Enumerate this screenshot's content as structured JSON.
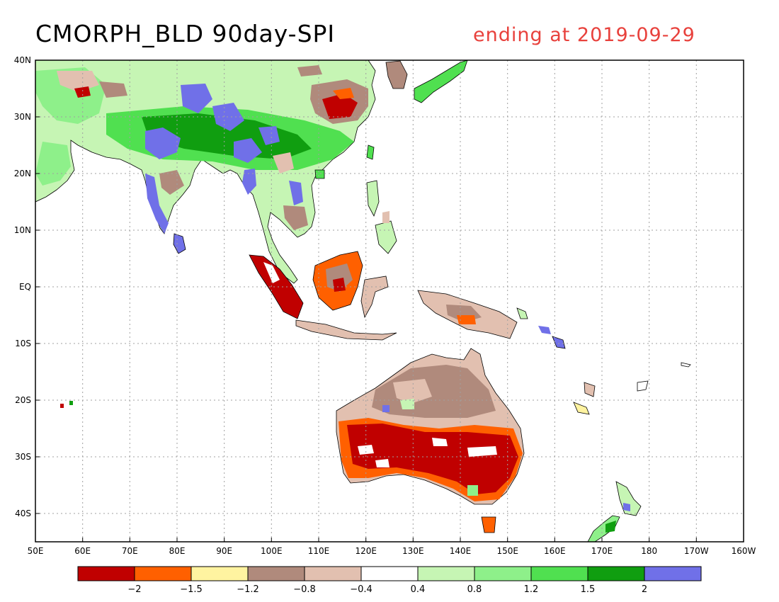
{
  "title": "CMORPH_BLD 90day-SPI",
  "subtitle": "ending at 2019-09-29",
  "map": {
    "lat_labels": [
      "40N",
      "30N",
      "20N",
      "10N",
      "EQ",
      "10S",
      "20S",
      "30S",
      "40S"
    ],
    "lon_labels": [
      "50E",
      "60E",
      "70E",
      "80E",
      "90E",
      "100E",
      "110E",
      "120E",
      "130E",
      "140E",
      "150E",
      "160E",
      "170E",
      "180",
      "170W",
      "160W"
    ]
  },
  "colorbar": {
    "colors": [
      "#c00000",
      "#ff6000",
      "#fff3a0",
      "#b08a7c",
      "#e2c0b0",
      "#ffffff",
      "#c6f5b4",
      "#8ef08a",
      "#50e050",
      "#109e10",
      "#7070e8"
    ],
    "labels": [
      "-2",
      "-1.5",
      "-1.2",
      "-0.8",
      "-0.4",
      "0.4",
      "0.8",
      "1.2",
      "1.5",
      "2"
    ]
  },
  "colors": {
    "title": "#000000",
    "subtitle": "#e8413c"
  }
}
